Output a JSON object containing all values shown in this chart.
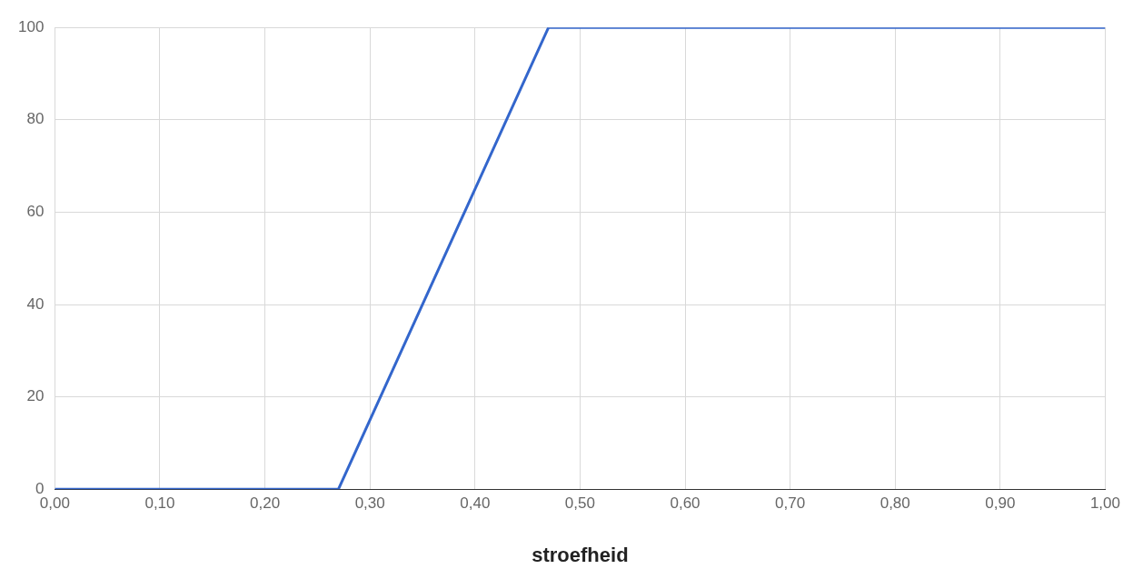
{
  "chart_data": {
    "type": "line",
    "xlabel": "stroefheid",
    "x": [
      0,
      0.27,
      0.47,
      1
    ],
    "series": [
      {
        "color": "#3366cc",
        "values": [
          0,
          0,
          100,
          100
        ]
      }
    ],
    "xlim": [
      0,
      1
    ],
    "xticks": [
      {
        "value": 0,
        "label": "0,00"
      },
      {
        "value": 0.1,
        "label": "0,10"
      },
      {
        "value": 0.2,
        "label": "0,20"
      },
      {
        "value": 0.3,
        "label": "0,30"
      },
      {
        "value": 0.4,
        "label": "0,40"
      },
      {
        "value": 0.5,
        "label": "0,50"
      },
      {
        "value": 0.6,
        "label": "0,60"
      },
      {
        "value": 0.7,
        "label": "0,70"
      },
      {
        "value": 0.8,
        "label": "0,80"
      },
      {
        "value": 0.9,
        "label": "0,90"
      },
      {
        "value": 1,
        "label": "1,00"
      }
    ],
    "ylim": [
      0,
      100
    ],
    "yticks": [
      0,
      20,
      40,
      60,
      80,
      100
    ],
    "grid": true,
    "marker": "none",
    "line_style": "solid"
  }
}
